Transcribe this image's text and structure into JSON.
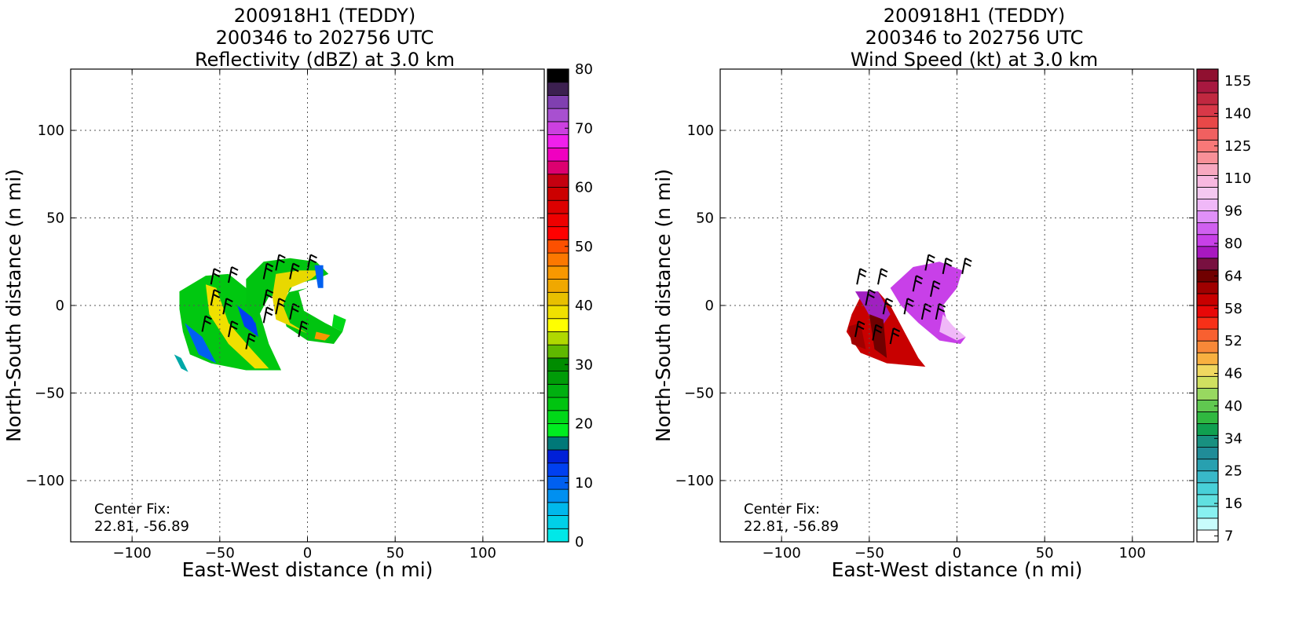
{
  "chart_data": [
    {
      "type": "heatmap",
      "title_lines": [
        "200918H1 (TEDDY)",
        "200346 to 202756 UTC",
        "Reflectivity (dBZ) at 3.0 km"
      ],
      "xlabel": "East-West distance (n mi)",
      "ylabel": "North-South distance (n mi)",
      "xlim": [
        -135,
        135
      ],
      "ylim": [
        -135,
        135
      ],
      "xticks": [
        "−100",
        "−50",
        "0",
        "50",
        "100"
      ],
      "yticks": [
        "−100",
        "−50",
        "0",
        "50",
        "100"
      ],
      "grid": true,
      "annotation": [
        "Center Fix:",
        "22.81, -56.89"
      ],
      "colorbar": {
        "range": [
          0,
          80
        ],
        "ticks": [
          "0",
          "10",
          "20",
          "30",
          "40",
          "50",
          "60",
          "70",
          "80"
        ],
        "colors": [
          "#00e8e8",
          "#00d0e8",
          "#00b8ec",
          "#0090f0",
          "#0060f0",
          "#0040f0",
          "#0020d8",
          "#007878",
          "#00ec20",
          "#00d818",
          "#00c410",
          "#00b010",
          "#009c08",
          "#008c00",
          "#60b800",
          "#b0d800",
          "#ffff00",
          "#f0e000",
          "#e8c000",
          "#f0a800",
          "#f89800",
          "#fc7800",
          "#fc5000",
          "#ff0000",
          "#ee0000",
          "#dc0000",
          "#cc0000",
          "#c40010",
          "#dc0070",
          "#f000c0",
          "#f020ec",
          "#cc40e0",
          "#a850d0",
          "#8040b0",
          "#3c2050",
          "#000000"
        ]
      },
      "wind_barbs": true
    },
    {
      "type": "heatmap",
      "title_lines": [
        "200918H1 (TEDDY)",
        "200346 to 202756 UTC",
        "Wind Speed (kt) at 3.0 km"
      ],
      "xlabel": "East-West distance (n mi)",
      "ylabel": "North-South distance (n mi)",
      "xlim": [
        -135,
        135
      ],
      "ylim": [
        -135,
        135
      ],
      "xticks": [
        "−100",
        "−50",
        "0",
        "50",
        "100"
      ],
      "yticks": [
        "−100",
        "−50",
        "0",
        "50",
        "100"
      ],
      "grid": true,
      "annotation": [
        "Center Fix:",
        "22.81, -56.89"
      ],
      "colorbar": {
        "ticks": [
          "7",
          "16",
          "25",
          "34",
          "40",
          "46",
          "52",
          "58",
          "64",
          "80",
          "96",
          "110",
          "125",
          "140",
          "155"
        ],
        "colors": [
          "#ffffff",
          "#c8fcfc",
          "#88f0f0",
          "#60e0e0",
          "#48d0d8",
          "#38b8c8",
          "#28a0b0",
          "#208c98",
          "#189080",
          "#10a050",
          "#30b840",
          "#60c850",
          "#98d860",
          "#d0e060",
          "#f0d860",
          "#f8b040",
          "#f88838",
          "#f86030",
          "#f83018",
          "#e80808",
          "#c80000",
          "#a00000",
          "#700000",
          "#781040",
          "#a818c0",
          "#c840e8",
          "#d060f0",
          "#e090f8",
          "#f0b8f8",
          "#f4c8f0",
          "#f8b8e0",
          "#f8a8c0",
          "#f89098",
          "#f87878",
          "#f06060",
          "#e84848",
          "#d83848",
          "#c02840",
          "#a81840",
          "#901030"
        ]
      },
      "wind_barbs": true
    }
  ]
}
